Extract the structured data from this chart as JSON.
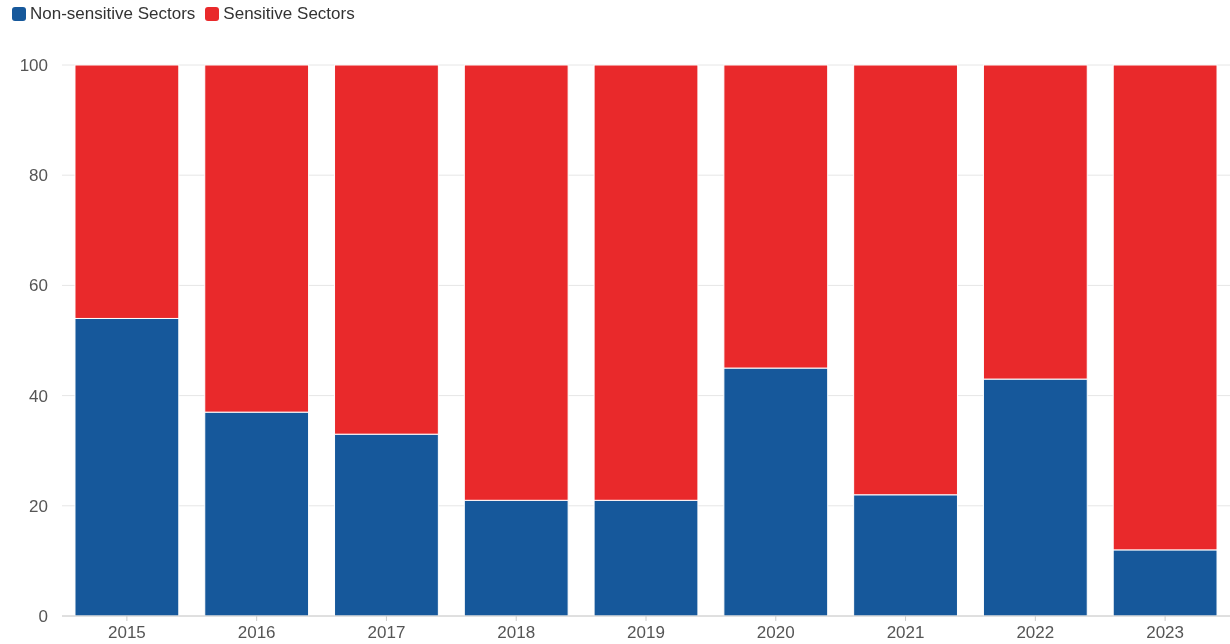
{
  "chart_data": {
    "type": "bar",
    "stacked": true,
    "categories": [
      "2015",
      "2016",
      "2017",
      "2018",
      "2019",
      "2020",
      "2021",
      "2022",
      "2023"
    ],
    "series": [
      {
        "name": "Non-sensitive Sectors",
        "color": "#16589b",
        "values": [
          54,
          37,
          33,
          21,
          21,
          45,
          22,
          43,
          12
        ]
      },
      {
        "name": "Sensitive Sectors",
        "color": "#e9292b",
        "values": [
          46,
          63,
          67,
          79,
          79,
          55,
          78,
          57,
          88
        ]
      }
    ],
    "ylim": [
      0,
      100
    ],
    "yticks": [
      0,
      20,
      40,
      60,
      80,
      100
    ],
    "grid": "y",
    "legend": "top left"
  }
}
